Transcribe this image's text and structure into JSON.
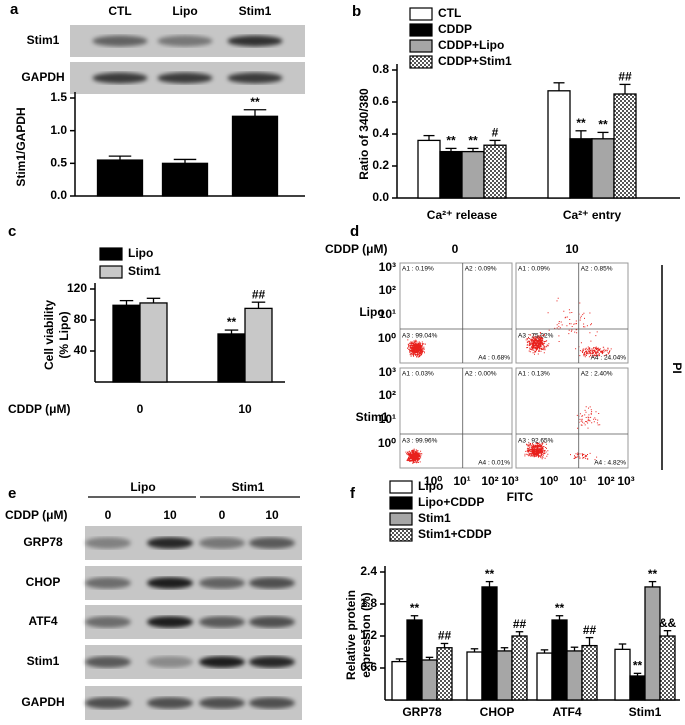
{
  "panel_labels": [
    "a",
    "b",
    "c",
    "d",
    "e",
    "f"
  ],
  "blot_a": {
    "rows": [
      "Stim1",
      "GAPDH"
    ]
  },
  "chart_data": [
    {
      "type": "bar",
      "y_label": "Stim1/GAPDH",
      "categories": [
        "CTL",
        "Lipo",
        "Stim1"
      ],
      "values": [
        0.55,
        0.5,
        1.22
      ],
      "errors": [
        0.06,
        0.06,
        0.1
      ],
      "annotations": [
        null,
        null,
        "**"
      ],
      "color": "#000000",
      "ylim": [
        0,
        1.5
      ],
      "yticks": [
        {
          "value": 0,
          "label": "0.0"
        },
        0.5,
        {
          "value": 1,
          "label": "1.0"
        },
        1.5
      ]
    },
    {
      "type": "bar",
      "y_label": "Ratio of 340/380",
      "categories": [
        "Ca²⁺ release",
        "Ca²⁺ entry"
      ],
      "series": [
        {
          "name": "CTL",
          "color": "#ffffff",
          "values": [
            0.36,
            0.67
          ],
          "errors": [
            0.03,
            0.05
          ],
          "annotations": [
            null,
            null
          ]
        },
        {
          "name": "CDDP",
          "color": "#000000",
          "values": [
            0.29,
            0.37
          ],
          "errors": [
            0.02,
            0.05
          ],
          "annotations": [
            "**",
            "**"
          ]
        },
        {
          "name": "CDDP+Lipo",
          "color": "#a6a6a6",
          "values": [
            0.29,
            0.37
          ],
          "errors": [
            0.02,
            0.04
          ],
          "annotations": [
            "**",
            "**"
          ]
        },
        {
          "name": "CDDP+Stim1",
          "color": "#ffffff",
          "pattern": "checker",
          "values": [
            0.33,
            0.65
          ],
          "errors": [
            0.03,
            0.06
          ],
          "annotations": [
            "#",
            "##"
          ]
        }
      ],
      "ylim": [
        0,
        0.8
      ],
      "yticks": [
        {
          "value": 0,
          "label": "0.0"
        },
        0.2,
        0.4,
        0.6,
        0.8
      ]
    },
    {
      "type": "bar",
      "y_label": [
        "Cell viability",
        "(% Lipo)"
      ],
      "x_label": "CDDP (μM)",
      "categories": [
        "0",
        "10"
      ],
      "series": [
        {
          "name": "Lipo",
          "color": "#000000",
          "values": [
            99,
            62
          ],
          "errors": [
            6,
            5
          ],
          "annotations": [
            null,
            "**"
          ]
        },
        {
          "name": "Stim1",
          "color": "#c8c8c8",
          "values": [
            102,
            95
          ],
          "errors": [
            6,
            8
          ],
          "annotations": [
            null,
            "##"
          ]
        }
      ],
      "ylim": [
        0,
        120
      ],
      "yticks": [
        40,
        80,
        120
      ]
    },
    {
      "type": "bar",
      "y_label": [
        "Relative protein",
        "expression (%)"
      ],
      "categories": [
        "GRP78",
        "CHOP",
        "ATF4",
        "Stim1"
      ],
      "series": [
        {
          "name": "Lipo",
          "color": "#ffffff",
          "values": [
            0.72,
            0.9,
            0.88,
            0.95
          ],
          "errors": [
            0.05,
            0.06,
            0.06,
            0.1
          ],
          "annotations": [
            null,
            null,
            null,
            null
          ]
        },
        {
          "name": "Lipo+CDDP",
          "color": "#000000",
          "values": [
            1.5,
            2.12,
            1.5,
            0.45
          ],
          "errors": [
            0.08,
            0.1,
            0.08,
            0.05
          ],
          "annotations": [
            "**",
            "**",
            "**",
            "**"
          ]
        },
        {
          "name": "Stim1",
          "color": "#a6a6a6",
          "values": [
            0.75,
            0.92,
            0.92,
            2.12
          ],
          "errors": [
            0.05,
            0.06,
            0.07,
            0.1
          ],
          "annotations": [
            null,
            null,
            null,
            "**"
          ]
        },
        {
          "name": "Stim1+CDDP",
          "color": "#ffffff",
          "pattern": "checker",
          "values": [
            0.98,
            1.2,
            1.02,
            1.2
          ],
          "errors": [
            0.08,
            0.08,
            0.15,
            0.1
          ],
          "annotations": [
            "##",
            "##",
            "##",
            "&&"
          ]
        }
      ],
      "ylim": [
        0,
        2.4
      ],
      "yticks": [
        0.6,
        1.2,
        1.8,
        2.4
      ]
    }
  ],
  "flow": {
    "header_label": "CDDP (μM)",
    "columns": [
      "0",
      "10"
    ],
    "rows": [
      "Lipo",
      "Stim1"
    ],
    "quadrants": [
      [
        [
          "A1 : 0.19%",
          "A2 : 0.09%",
          "A3 : 99.04%",
          "A4 : 0.68%"
        ],
        [
          "A1 : 0.09%",
          "A2 : 0.85%",
          "A3 : 75.02%",
          "A4 : 24.04%"
        ]
      ],
      [
        [
          "A1 : 0.03%",
          "A2 : 0.00%",
          "A3 : 99.96%",
          "A4 : 0.01%"
        ],
        [
          "A1 : 0.13%",
          "A2 : 2.40%",
          "A3 : 92.65%",
          "A4 : 4.82%"
        ]
      ]
    ],
    "x_ticks": [
      "10⁰",
      "10¹",
      "10²",
      "10³"
    ],
    "y_ticks": [
      "10³",
      "10²",
      "10¹",
      "10⁰"
    ],
    "x_label": "FITC",
    "y_label": "PI"
  },
  "blot_e": {
    "groups": [
      "Lipo",
      "Stim1"
    ],
    "dose_label": "CDDP (μM)",
    "doses": [
      "0",
      "10",
      "0",
      "10"
    ],
    "rows": [
      "GRP78",
      "CHOP",
      "ATF4",
      "Stim1",
      "GAPDH"
    ]
  }
}
